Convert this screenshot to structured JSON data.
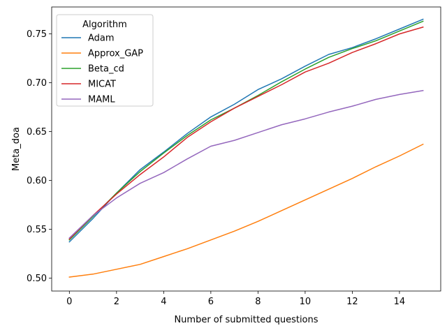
{
  "chart_data": {
    "type": "line",
    "title": "",
    "xlabel": "Number of submitted questions",
    "ylabel": "Meta_doa",
    "xlim": [
      -0.75,
      15.75
    ],
    "ylim": [
      0.4867,
      0.7776
    ],
    "x_ticks": [
      0,
      2,
      4,
      6,
      8,
      10,
      12,
      14
    ],
    "y_ticks": [
      0.5,
      0.55,
      0.6,
      0.65,
      0.7,
      0.75
    ],
    "x_tick_labels": [
      "0",
      "2",
      "4",
      "6",
      "8",
      "10",
      "12",
      "14"
    ],
    "y_tick_labels": [
      "0.50",
      "0.55",
      "0.60",
      "0.65",
      "0.70",
      "0.75"
    ],
    "grid": false,
    "legend": {
      "title": "Algorithm",
      "placement": "top-left"
    },
    "x": [
      0,
      1,
      2,
      3,
      4,
      5,
      6,
      7,
      8,
      9,
      10,
      11,
      12,
      13,
      14,
      15
    ],
    "series": [
      {
        "name": "Adam",
        "color": "#1f77b4",
        "values": [
          0.537,
          0.561,
          0.587,
          0.611,
          0.629,
          0.648,
          0.665,
          0.678,
          0.693,
          0.704,
          0.717,
          0.729,
          0.736,
          0.745,
          0.755,
          0.765
        ]
      },
      {
        "name": "Approx_GAP",
        "color": "#ff7f0e",
        "values": [
          0.501,
          0.504,
          0.509,
          0.514,
          0.522,
          0.53,
          0.539,
          0.548,
          0.558,
          0.569,
          0.58,
          0.591,
          0.602,
          0.614,
          0.625,
          0.637
        ]
      },
      {
        "name": "Beta_cd",
        "color": "#2ca02c",
        "values": [
          0.539,
          0.563,
          0.587,
          0.609,
          0.628,
          0.646,
          0.662,
          0.674,
          0.687,
          0.701,
          0.714,
          0.726,
          0.735,
          0.743,
          0.753,
          0.763
        ]
      },
      {
        "name": "MICAT",
        "color": "#d62728",
        "values": [
          0.54,
          0.564,
          0.586,
          0.606,
          0.624,
          0.644,
          0.66,
          0.674,
          0.686,
          0.698,
          0.711,
          0.72,
          0.731,
          0.74,
          0.75,
          0.757
        ]
      },
      {
        "name": "MAML",
        "color": "#9467bd",
        "values": [
          0.541,
          0.564,
          0.582,
          0.597,
          0.608,
          0.622,
          0.635,
          0.641,
          0.649,
          0.657,
          0.663,
          0.67,
          0.676,
          0.683,
          0.688,
          0.692
        ]
      }
    ]
  }
}
